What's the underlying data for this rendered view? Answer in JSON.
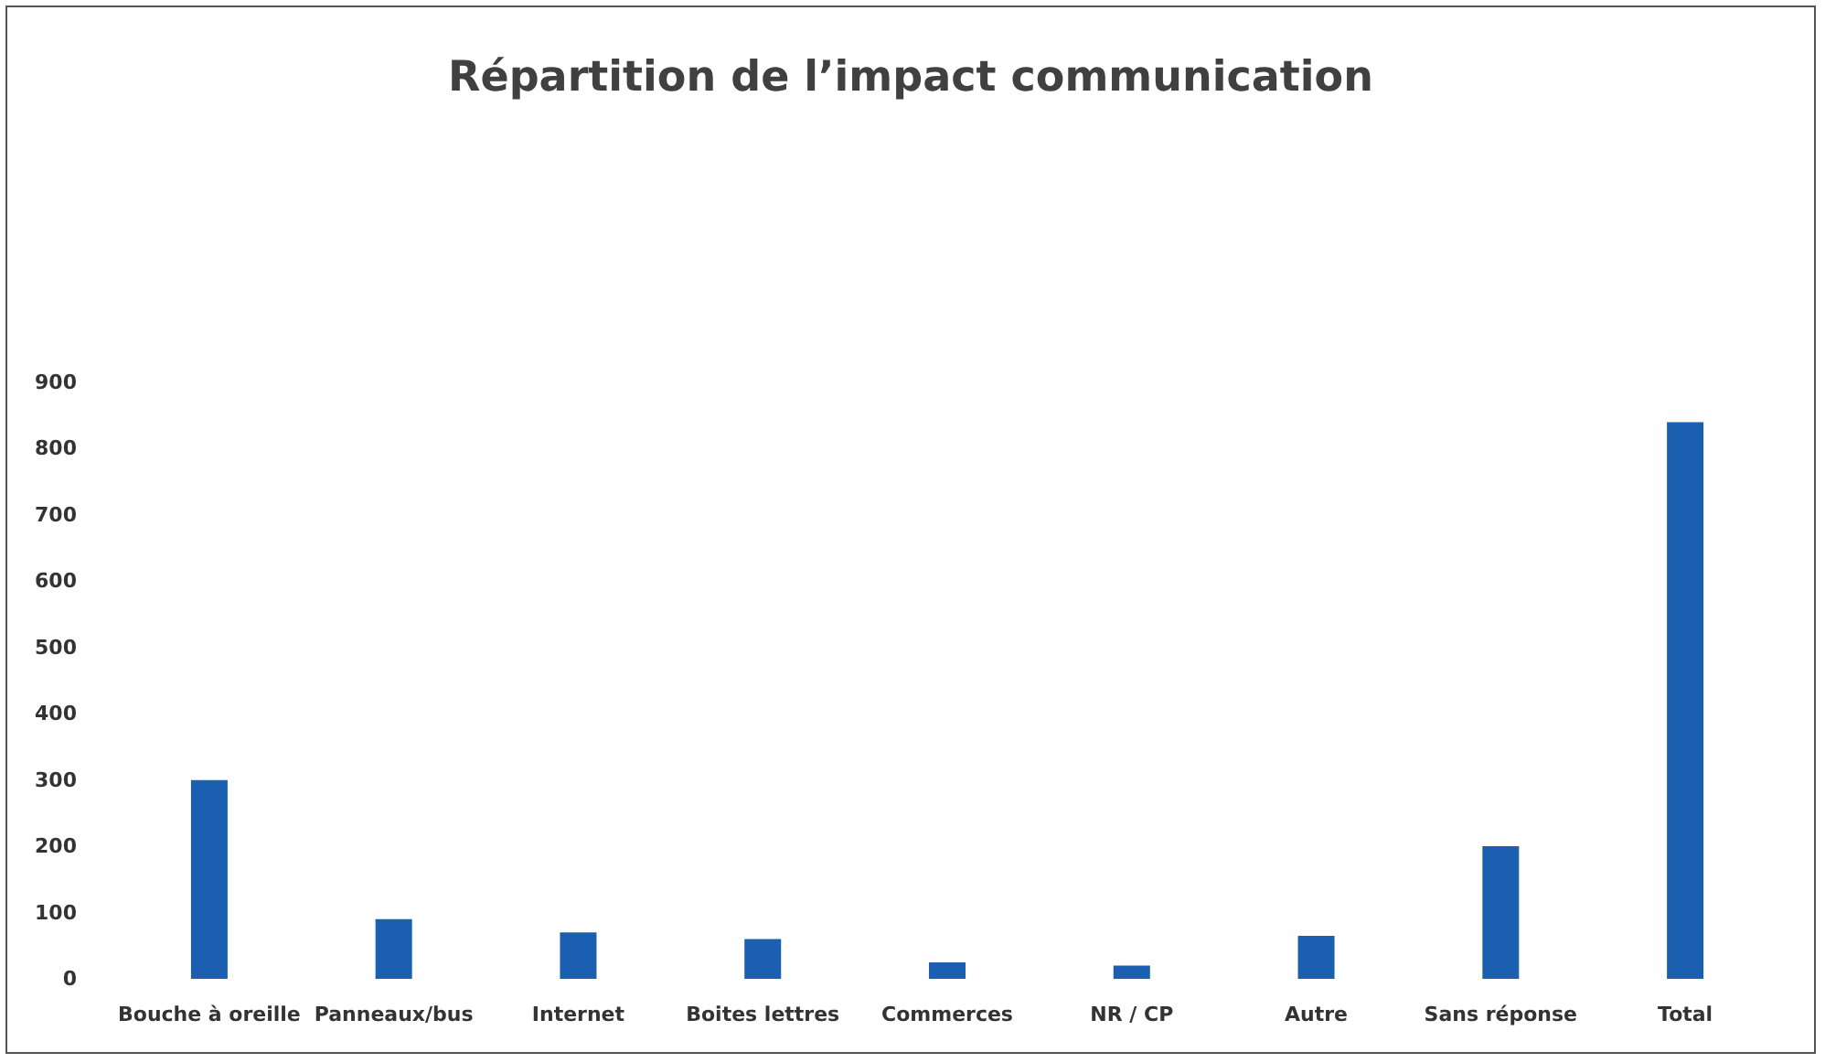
{
  "chart_data": {
    "type": "bar",
    "title": "Répartition de l’impact communication",
    "categories": [
      "Bouche à oreille",
      "Panneaux/bus",
      "Internet",
      "Boites lettres",
      "Commerces",
      "NR / CP",
      "Autre",
      "Sans réponse",
      "Total"
    ],
    "values": [
      300,
      90,
      70,
      60,
      25,
      20,
      65,
      200,
      840
    ],
    "color": "#1a5fb0",
    "ylim": [
      0,
      900
    ],
    "yticks": [
      0,
      100,
      200,
      300,
      400,
      500,
      600,
      700,
      800,
      900
    ],
    "grid": false
  }
}
